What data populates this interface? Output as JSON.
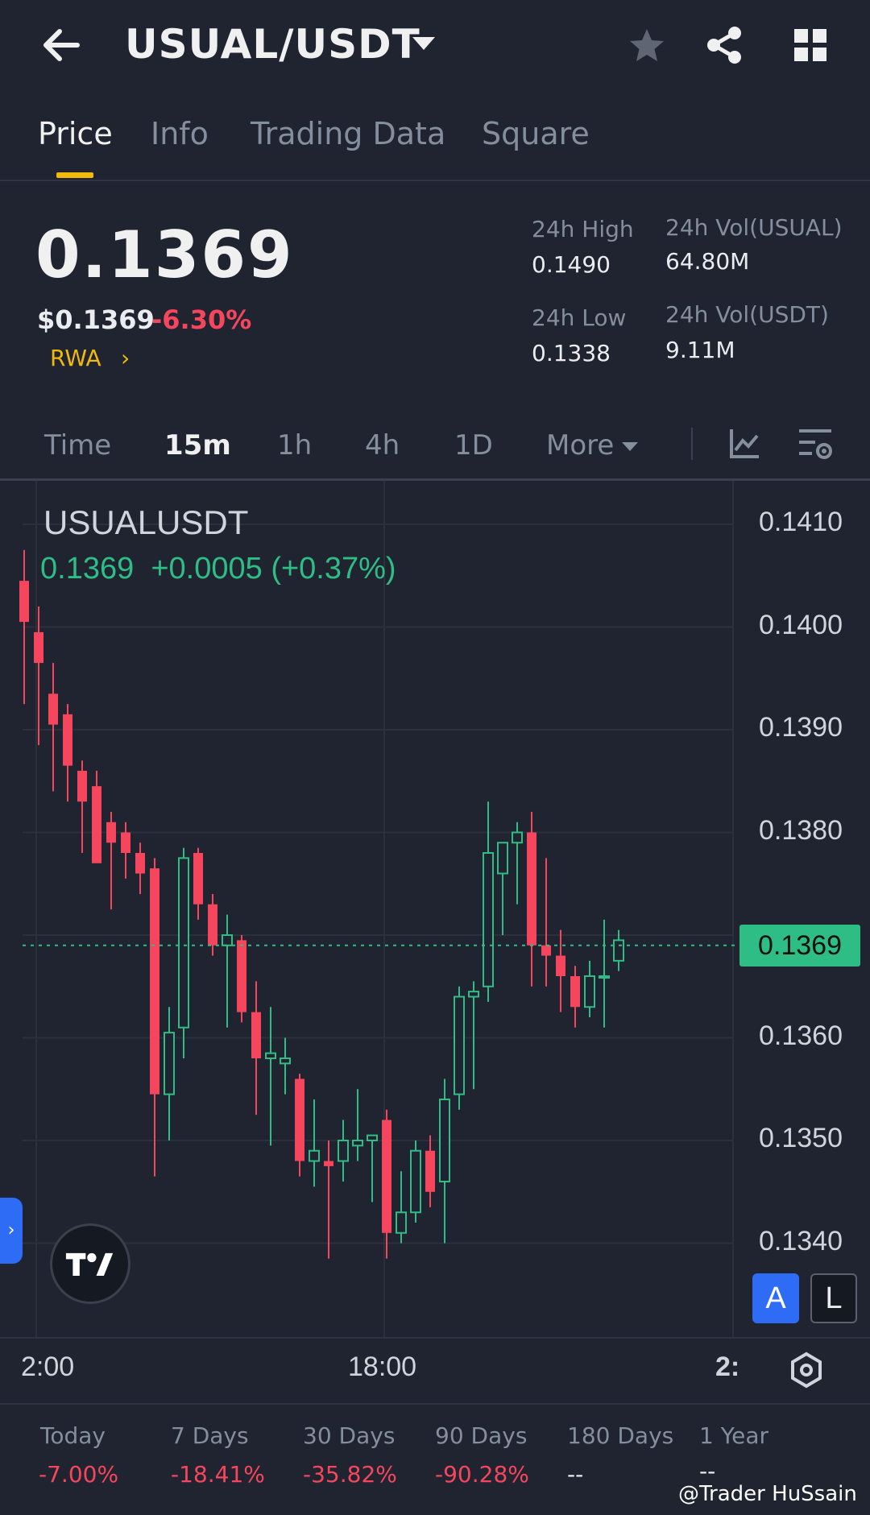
{
  "header": {
    "back_icon": "arrow-left-icon",
    "pair": "USUAL/USDT",
    "icons": [
      "star-icon",
      "share-icon",
      "grid-icon"
    ]
  },
  "tabs": [
    {
      "label": "Price",
      "active": true
    },
    {
      "label": "Info",
      "active": false
    },
    {
      "label": "Trading Data",
      "active": false
    },
    {
      "label": "Square",
      "active": false
    }
  ],
  "price": {
    "last": "0.1369",
    "usd": "$0.1369",
    "change": "-6.30%",
    "tag": "RWA",
    "high_label": "24h High",
    "high_value": "0.1490",
    "low_label": "24h Low",
    "low_value": "0.1338",
    "vol_base_label": "24h Vol(USUAL)",
    "vol_base_value": "64.80M",
    "vol_quote_label": "24h Vol(USDT)",
    "vol_quote_value": "9.11M"
  },
  "intervals": [
    {
      "label": "Time",
      "active": false
    },
    {
      "label": "15m",
      "active": true
    },
    {
      "label": "1h",
      "active": false
    },
    {
      "label": "4h",
      "active": false
    },
    {
      "label": "1D",
      "active": false
    },
    {
      "label": "More",
      "active": false
    }
  ],
  "chart": {
    "symbol": "USUALUSDT",
    "ohlc_text": "0.1369  +0.0005 (+0.37%)",
    "current_price": "0.1369",
    "y_ticks": [
      "0.1410",
      "0.1400",
      "0.1390",
      "0.1380",
      "0.1360",
      "0.1350",
      "0.1340"
    ],
    "x_ticks": [
      "2:00",
      "18:00",
      "2:"
    ],
    "buttons": {
      "auto": "A",
      "log": "L"
    },
    "colors": {
      "up": "#2ebd85",
      "down": "#f6465d",
      "grid": "#2b303c",
      "background": "#1f2430"
    }
  },
  "chart_data": {
    "type": "candlestick",
    "ylim": [
      0.1333,
      0.1413
    ],
    "current": 0.1369,
    "candles": [
      {
        "o": 0.14045,
        "h": 0.14075,
        "l": 0.13925,
        "c": 0.14005
      },
      {
        "o": 0.13995,
        "h": 0.1402,
        "l": 0.13885,
        "c": 0.13965
      },
      {
        "o": 0.13935,
        "h": 0.13965,
        "l": 0.1384,
        "c": 0.13905
      },
      {
        "o": 0.13915,
        "h": 0.13925,
        "l": 0.1383,
        "c": 0.13865
      },
      {
        "o": 0.1386,
        "h": 0.1387,
        "l": 0.1378,
        "c": 0.1383
      },
      {
        "o": 0.13845,
        "h": 0.1386,
        "l": 0.13775,
        "c": 0.1377
      },
      {
        "o": 0.1381,
        "h": 0.1382,
        "l": 0.13725,
        "c": 0.1379
      },
      {
        "o": 0.138,
        "h": 0.1381,
        "l": 0.13755,
        "c": 0.1378
      },
      {
        "o": 0.1378,
        "h": 0.1379,
        "l": 0.1374,
        "c": 0.1376
      },
      {
        "o": 0.13765,
        "h": 0.13775,
        "l": 0.13465,
        "c": 0.13545
      },
      {
        "o": 0.13545,
        "h": 0.1363,
        "l": 0.135,
        "c": 0.13605
      },
      {
        "o": 0.1361,
        "h": 0.13785,
        "l": 0.1358,
        "c": 0.13775
      },
      {
        "o": 0.1378,
        "h": 0.13785,
        "l": 0.13715,
        "c": 0.1373
      },
      {
        "o": 0.1373,
        "h": 0.1374,
        "l": 0.1368,
        "c": 0.1369
      },
      {
        "o": 0.1369,
        "h": 0.1372,
        "l": 0.1361,
        "c": 0.137
      },
      {
        "o": 0.13695,
        "h": 0.137,
        "l": 0.13615,
        "c": 0.13625
      },
      {
        "o": 0.13625,
        "h": 0.13655,
        "l": 0.13525,
        "c": 0.1358
      },
      {
        "o": 0.1358,
        "h": 0.1363,
        "l": 0.13495,
        "c": 0.13585
      },
      {
        "o": 0.13575,
        "h": 0.136,
        "l": 0.13545,
        "c": 0.1358
      },
      {
        "o": 0.1356,
        "h": 0.13565,
        "l": 0.13465,
        "c": 0.1348
      },
      {
        "o": 0.1348,
        "h": 0.1354,
        "l": 0.13455,
        "c": 0.1349
      },
      {
        "o": 0.1348,
        "h": 0.135,
        "l": 0.13385,
        "c": 0.13475
      },
      {
        "o": 0.1348,
        "h": 0.1352,
        "l": 0.1346,
        "c": 0.135
      },
      {
        "o": 0.13495,
        "h": 0.1355,
        "l": 0.1348,
        "c": 0.135
      },
      {
        "o": 0.135,
        "h": 0.13505,
        "l": 0.1344,
        "c": 0.13505
      },
      {
        "o": 0.1352,
        "h": 0.1353,
        "l": 0.13385,
        "c": 0.1341
      },
      {
        "o": 0.1341,
        "h": 0.1347,
        "l": 0.134,
        "c": 0.1343
      },
      {
        "o": 0.1343,
        "h": 0.135,
        "l": 0.1342,
        "c": 0.1349
      },
      {
        "o": 0.1349,
        "h": 0.13505,
        "l": 0.13435,
        "c": 0.1345
      },
      {
        "o": 0.1346,
        "h": 0.1356,
        "l": 0.134,
        "c": 0.1354
      },
      {
        "o": 0.13545,
        "h": 0.1365,
        "l": 0.1353,
        "c": 0.1364
      },
      {
        "o": 0.1364,
        "h": 0.13655,
        "l": 0.1355,
        "c": 0.13645
      },
      {
        "o": 0.1365,
        "h": 0.1383,
        "l": 0.13635,
        "c": 0.1378
      },
      {
        "o": 0.1376,
        "h": 0.1379,
        "l": 0.137,
        "c": 0.1379
      },
      {
        "o": 0.1379,
        "h": 0.1381,
        "l": 0.1373,
        "c": 0.138
      },
      {
        "o": 0.138,
        "h": 0.1382,
        "l": 0.1365,
        "c": 0.1369
      },
      {
        "o": 0.1369,
        "h": 0.13775,
        "l": 0.1365,
        "c": 0.1368
      },
      {
        "o": 0.1368,
        "h": 0.13705,
        "l": 0.13625,
        "c": 0.1366
      },
      {
        "o": 0.1366,
        "h": 0.1367,
        "l": 0.1361,
        "c": 0.1363
      },
      {
        "o": 0.1363,
        "h": 0.13675,
        "l": 0.1362,
        "c": 0.1366
      },
      {
        "o": 0.1366,
        "h": 0.13715,
        "l": 0.1361,
        "c": 0.1366
      },
      {
        "o": 0.13675,
        "h": 0.13705,
        "l": 0.13665,
        "c": 0.13695
      }
    ]
  },
  "performance": [
    {
      "label": "Today",
      "value": "-7.00%"
    },
    {
      "label": "7 Days",
      "value": "-18.41%"
    },
    {
      "label": "30 Days",
      "value": "-35.82%"
    },
    {
      "label": "90 Days",
      "value": "-90.28%"
    },
    {
      "label": "180 Days",
      "value": "--"
    },
    {
      "label": "1 Year",
      "value": "--"
    }
  ],
  "watermark": "@Trader HuSsain"
}
